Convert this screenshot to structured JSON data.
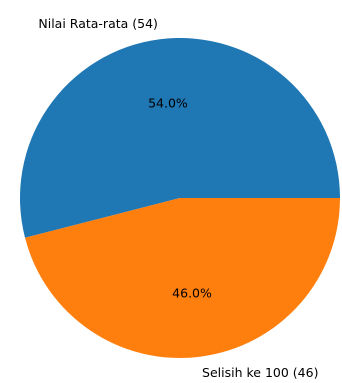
{
  "chart_data": {
    "type": "pie",
    "title": "",
    "slices": [
      {
        "label": "Nilai Rata-rata (54)",
        "value": 54,
        "percent_label": "54.0%",
        "color": "#1f77b4"
      },
      {
        "label": "Selisih ke 100 (46)",
        "value": 46,
        "percent_label": "46.0%",
        "color": "#ff7f0e"
      }
    ],
    "start_angle": "3 o'clock",
    "direction": "counterclockwise"
  }
}
